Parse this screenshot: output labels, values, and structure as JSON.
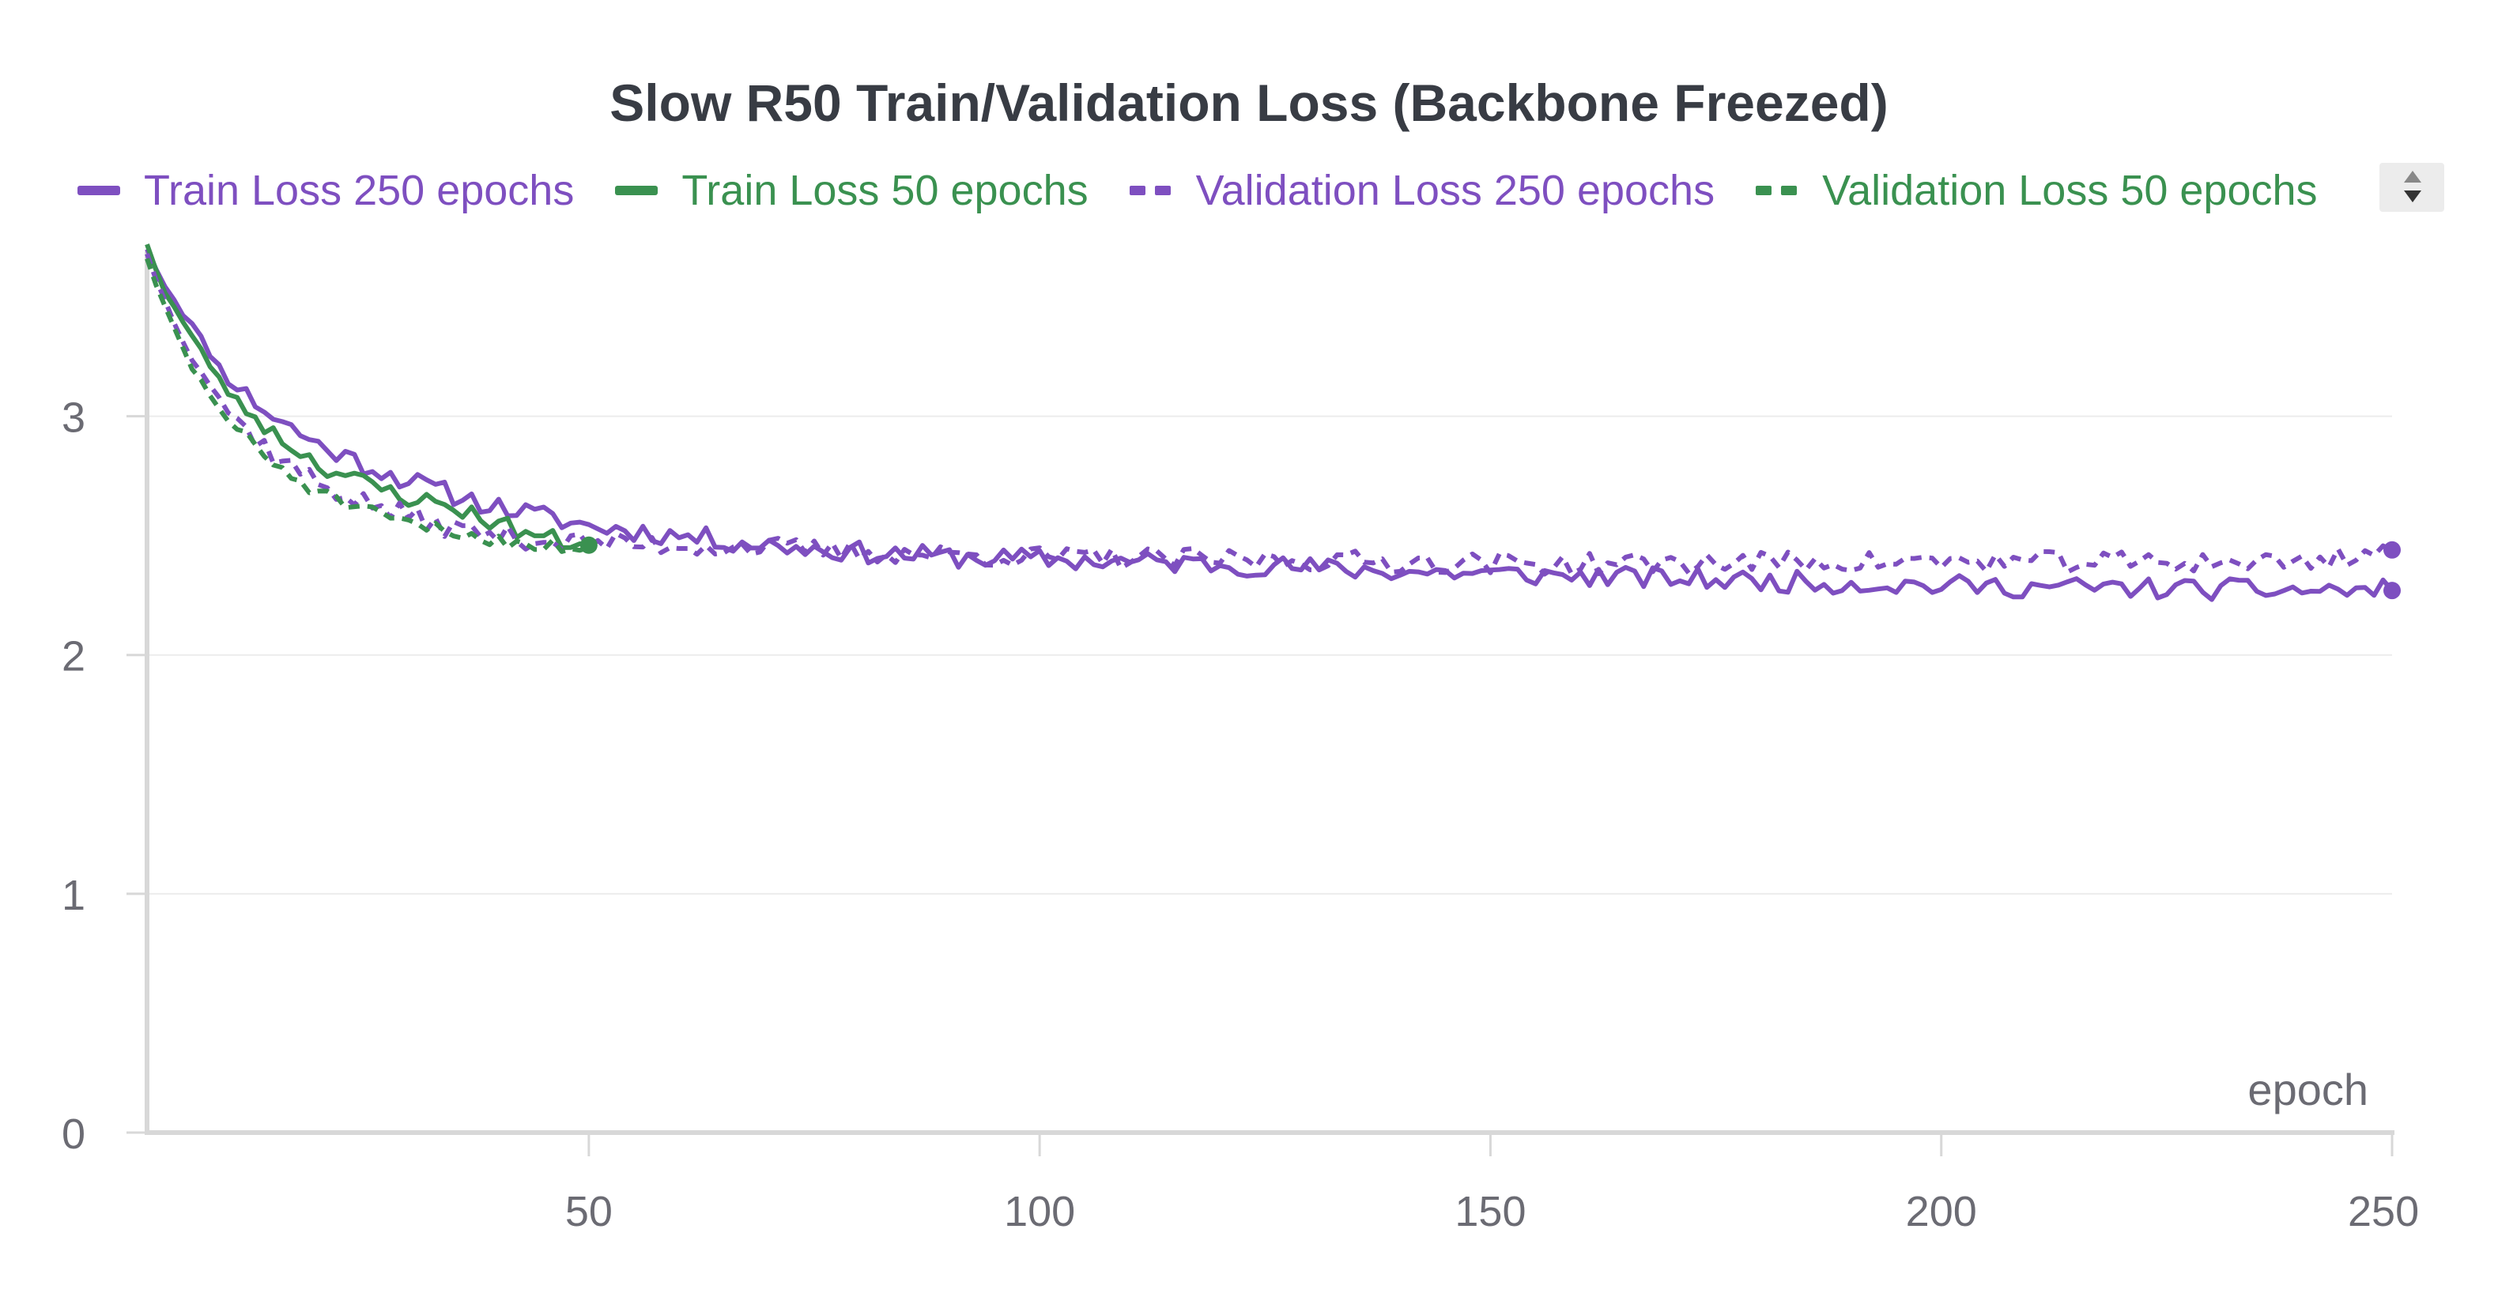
{
  "chart_data": {
    "type": "line",
    "title": "Slow R50 Train/Validation Loss (Backbone Freezed)",
    "xlabel": "epoch",
    "ylabel": "",
    "xlim": [
      1,
      250
    ],
    "ylim": [
      0,
      3.75
    ],
    "x_ticks": [
      50,
      100,
      150,
      200,
      250
    ],
    "x_tick_labels": [
      "50",
      "100",
      "150",
      "200",
      "250"
    ],
    "y_ticks": [
      0,
      1,
      2,
      3
    ],
    "y_tick_labels": [
      "0",
      "1",
      "2",
      "3"
    ],
    "grid": true,
    "legend_position": "top",
    "series": [
      {
        "name": "Train Loss 250 epochs",
        "color": "#7e4fc0",
        "style": "solid",
        "end_marker": true,
        "anchors": [
          [
            1,
            3.7
          ],
          [
            3,
            3.55
          ],
          [
            6,
            3.38
          ],
          [
            10,
            3.15
          ],
          [
            15,
            3.0
          ],
          [
            20,
            2.88
          ],
          [
            25,
            2.8
          ],
          [
            30,
            2.73
          ],
          [
            35,
            2.67
          ],
          [
            40,
            2.62
          ],
          [
            45,
            2.58
          ],
          [
            50,
            2.54
          ],
          [
            55,
            2.52
          ],
          [
            60,
            2.5
          ],
          [
            70,
            2.46
          ],
          [
            80,
            2.43
          ],
          [
            90,
            2.41
          ],
          [
            100,
            2.4
          ],
          [
            120,
            2.38
          ],
          [
            140,
            2.35
          ],
          [
            160,
            2.33
          ],
          [
            180,
            2.31
          ],
          [
            200,
            2.29
          ],
          [
            220,
            2.28
          ],
          [
            240,
            2.27
          ],
          [
            250,
            2.27
          ]
        ],
        "noise": 0.045,
        "seed": 11
      },
      {
        "name": "Train Loss 50 epochs",
        "color": "#3a9150",
        "style": "solid",
        "end_marker": true,
        "anchors": [
          [
            1,
            3.72
          ],
          [
            3,
            3.52
          ],
          [
            6,
            3.33
          ],
          [
            10,
            3.1
          ],
          [
            15,
            2.93
          ],
          [
            20,
            2.8
          ],
          [
            25,
            2.72
          ],
          [
            30,
            2.66
          ],
          [
            35,
            2.62
          ],
          [
            40,
            2.55
          ],
          [
            45,
            2.49
          ],
          [
            50,
            2.46
          ]
        ],
        "noise": 0.04,
        "seed": 23
      },
      {
        "name": "Validation Loss 250 epochs",
        "color": "#7e4fc0",
        "style": "dashed",
        "end_marker": true,
        "anchors": [
          [
            1,
            3.68
          ],
          [
            3,
            3.48
          ],
          [
            6,
            3.25
          ],
          [
            10,
            3.02
          ],
          [
            15,
            2.84
          ],
          [
            20,
            2.72
          ],
          [
            25,
            2.64
          ],
          [
            30,
            2.58
          ],
          [
            35,
            2.53
          ],
          [
            40,
            2.5
          ],
          [
            45,
            2.48
          ],
          [
            50,
            2.47
          ],
          [
            60,
            2.46
          ],
          [
            70,
            2.45
          ],
          [
            80,
            2.43
          ],
          [
            100,
            2.41
          ],
          [
            120,
            2.4
          ],
          [
            140,
            2.39
          ],
          [
            160,
            2.38
          ],
          [
            180,
            2.39
          ],
          [
            200,
            2.39
          ],
          [
            220,
            2.39
          ],
          [
            240,
            2.39
          ],
          [
            250,
            2.44
          ]
        ],
        "noise": 0.045,
        "seed": 37
      },
      {
        "name": "Validation Loss 50 epochs",
        "color": "#3a9150",
        "style": "dashed",
        "end_marker": false,
        "anchors": [
          [
            1,
            3.66
          ],
          [
            3,
            3.45
          ],
          [
            6,
            3.2
          ],
          [
            10,
            2.98
          ],
          [
            15,
            2.8
          ],
          [
            20,
            2.68
          ],
          [
            25,
            2.6
          ],
          [
            30,
            2.55
          ],
          [
            35,
            2.51
          ],
          [
            40,
            2.48
          ],
          [
            45,
            2.46
          ],
          [
            50,
            2.45
          ]
        ],
        "noise": 0.03,
        "seed": 51
      }
    ]
  },
  "legend": {
    "items": [
      {
        "label": "Train Loss 250 epochs",
        "color": "#7e4fc0",
        "style": "solid"
      },
      {
        "label": "Train Loss 50 epochs",
        "color": "#3a9150",
        "style": "solid"
      },
      {
        "label": "Validation Loss 250 epochs",
        "color": "#7e4fc0",
        "style": "dashed"
      },
      {
        "label": "Validation Loss 50 epochs",
        "color": "#3a9150",
        "style": "dashed"
      }
    ],
    "scroll_icon": "up-down-arrows-icon"
  },
  "colors": {
    "axis": "#d8d8d8",
    "grid": "#ececec",
    "tick_text": "#6b6b73",
    "title_text": "#383c44"
  }
}
